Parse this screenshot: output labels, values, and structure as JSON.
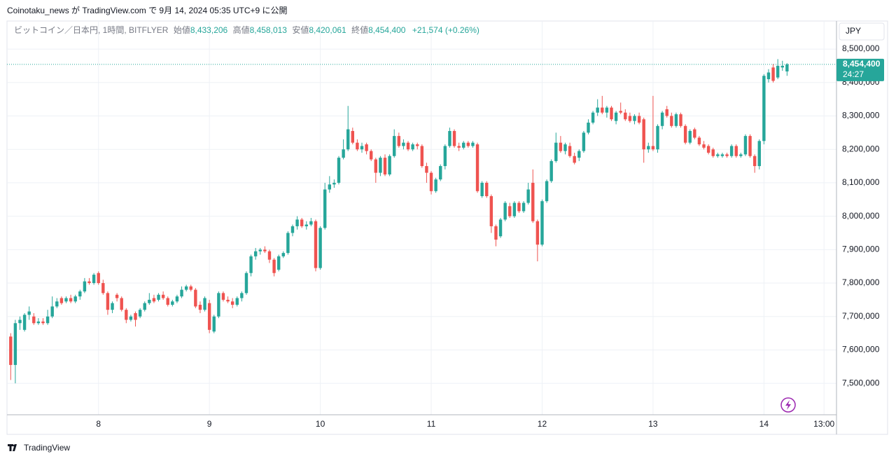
{
  "header": "Coinotaku_news が TradingView.com で 9月 14, 2024 05:35 UTC+9 に公開",
  "footer": "TradingView",
  "currency": "JPY",
  "legend": {
    "symbol": "ビットコイン／日本円, 1時間, BITFLYER",
    "items": [
      {
        "label": "始値",
        "value": "8,433,206"
      },
      {
        "label": "高値",
        "value": "8,458,013"
      },
      {
        "label": "安値",
        "value": "8,420,061"
      },
      {
        "label": "終値",
        "value": "8,454,400"
      }
    ],
    "change": "+21,574 (+0.26%)"
  },
  "chart_data": {
    "type": "candlestick",
    "up_color": "#26a69a",
    "down_color": "#ef5350",
    "last_price": {
      "value": 8454400,
      "label": "8,454,400"
    },
    "countdown": "24:27",
    "xlim": [
      4.2,
      183.7
    ],
    "xticks": [
      {
        "value": 24,
        "label": "8"
      },
      {
        "value": 48,
        "label": "9"
      },
      {
        "value": 72,
        "label": "10"
      },
      {
        "value": 96,
        "label": "11"
      },
      {
        "value": 120,
        "label": "12"
      },
      {
        "value": 144,
        "label": "13"
      },
      {
        "value": 168,
        "label": "14"
      },
      {
        "value": 181,
        "label": "13:00"
      }
    ],
    "ylim": [
      7406000,
      8584000
    ],
    "yticks": [
      {
        "value": 7500000,
        "label": "7,500,000"
      },
      {
        "value": 7600000,
        "label": "7,600,000"
      },
      {
        "value": 7700000,
        "label": "7,700,000"
      },
      {
        "value": 7800000,
        "label": "7,800,000"
      },
      {
        "value": 7900000,
        "label": "7,900,000"
      },
      {
        "value": 8000000,
        "label": "8,000,000"
      },
      {
        "value": 8100000,
        "label": "8,100,000"
      },
      {
        "value": 8200000,
        "label": "8,200,000"
      },
      {
        "value": 8300000,
        "label": "8,300,000"
      },
      {
        "value": 8400000,
        "label": "8,400,000"
      },
      {
        "value": 8500000,
        "label": "8,500,000"
      }
    ],
    "grid": true,
    "x": [
      5,
      6,
      7,
      8,
      9,
      10,
      11,
      12,
      13,
      14,
      15,
      16,
      17,
      18,
      19,
      20,
      21,
      22,
      23,
      24,
      25,
      26,
      27,
      28,
      29,
      30,
      31,
      32,
      33,
      34,
      35,
      36,
      37,
      38,
      39,
      40,
      41,
      42,
      43,
      44,
      45,
      46,
      47,
      48,
      49,
      50,
      51,
      52,
      53,
      54,
      55,
      56,
      57,
      58,
      59,
      60,
      61,
      62,
      63,
      64,
      65,
      66,
      67,
      68,
      69,
      70,
      71,
      72,
      73,
      74,
      75,
      76,
      77,
      78,
      79,
      80,
      81,
      82,
      83,
      84,
      85,
      86,
      87,
      88,
      89,
      90,
      91,
      92,
      93,
      94,
      95,
      96,
      97,
      98,
      99,
      100,
      101,
      102,
      103,
      104,
      105,
      106,
      107,
      108,
      109,
      110,
      111,
      112,
      113,
      114,
      115,
      116,
      117,
      118,
      119,
      120,
      121,
      122,
      123,
      124,
      125,
      126,
      127,
      128,
      129,
      130,
      131,
      132,
      133,
      134,
      135,
      136,
      137,
      138,
      139,
      140,
      141,
      142,
      143,
      144,
      145,
      146,
      147,
      148,
      149,
      150,
      151,
      152,
      153,
      154,
      155,
      156,
      157,
      158,
      159,
      160,
      161,
      162,
      163,
      164,
      165,
      166,
      167,
      168,
      169,
      170,
      171,
      172,
      173
    ],
    "candles": [
      [
        7640000,
        7650000,
        7510000,
        7555000
      ],
      [
        7555000,
        7690000,
        7500000,
        7680000
      ],
      [
        7680000,
        7700000,
        7660000,
        7690000
      ],
      [
        7660000,
        7710000,
        7655000,
        7705000
      ],
      [
        7705000,
        7730000,
        7690000,
        7715000
      ],
      [
        7700000,
        7710000,
        7675000,
        7680000
      ],
      [
        7680000,
        7695000,
        7675000,
        7685000
      ],
      [
        7685000,
        7695000,
        7675000,
        7680000
      ],
      [
        7680000,
        7720000,
        7675000,
        7700000
      ],
      [
        7700000,
        7760000,
        7695000,
        7730000
      ],
      [
        7730000,
        7755000,
        7725000,
        7745000
      ],
      [
        7755000,
        7760000,
        7735000,
        7740000
      ],
      [
        7745000,
        7760000,
        7740000,
        7755000
      ],
      [
        7755000,
        7765000,
        7740000,
        7745000
      ],
      [
        7745000,
        7765000,
        7740000,
        7760000
      ],
      [
        7760000,
        7780000,
        7750000,
        7775000
      ],
      [
        7775000,
        7815000,
        7770000,
        7805000
      ],
      [
        7805000,
        7815000,
        7795000,
        7800000
      ],
      [
        7800000,
        7830000,
        7795000,
        7825000
      ],
      [
        7830000,
        7835000,
        7795000,
        7800000
      ],
      [
        7800000,
        7810000,
        7765000,
        7770000
      ],
      [
        7770000,
        7775000,
        7705000,
        7720000
      ],
      [
        7720000,
        7745000,
        7710000,
        7740000
      ],
      [
        7765000,
        7770000,
        7745000,
        7755000
      ],
      [
        7755000,
        7760000,
        7715000,
        7720000
      ],
      [
        7720000,
        7725000,
        7680000,
        7690000
      ],
      [
        7690000,
        7705000,
        7685000,
        7700000
      ],
      [
        7710000,
        7715000,
        7670000,
        7690000
      ],
      [
        7700000,
        7725000,
        7695000,
        7720000
      ],
      [
        7720000,
        7745000,
        7715000,
        7740000
      ],
      [
        7740000,
        7770000,
        7735000,
        7750000
      ],
      [
        7755000,
        7765000,
        7740000,
        7745000
      ],
      [
        7750000,
        7770000,
        7745000,
        7765000
      ],
      [
        7765000,
        7775000,
        7750000,
        7755000
      ],
      [
        7755000,
        7760000,
        7730000,
        7735000
      ],
      [
        7735000,
        7750000,
        7730000,
        7745000
      ],
      [
        7745000,
        7765000,
        7740000,
        7760000
      ],
      [
        7760000,
        7790000,
        7755000,
        7780000
      ],
      [
        7780000,
        7795000,
        7775000,
        7790000
      ],
      [
        7790000,
        7795000,
        7775000,
        7780000
      ],
      [
        7780000,
        7785000,
        7725000,
        7730000
      ],
      [
        7735000,
        7745000,
        7710000,
        7720000
      ],
      [
        7720000,
        7760000,
        7715000,
        7755000
      ],
      [
        7740000,
        7750000,
        7650000,
        7660000
      ],
      [
        7655000,
        7705000,
        7650000,
        7700000
      ],
      [
        7700000,
        7775000,
        7695000,
        7770000
      ],
      [
        7770000,
        7775000,
        7745000,
        7750000
      ],
      [
        7750000,
        7760000,
        7740000,
        7745000
      ],
      [
        7745000,
        7755000,
        7725000,
        7735000
      ],
      [
        7735000,
        7760000,
        7730000,
        7755000
      ],
      [
        7755000,
        7775000,
        7745000,
        7770000
      ],
      [
        7770000,
        7835000,
        7765000,
        7830000
      ],
      [
        7830000,
        7885000,
        7820000,
        7880000
      ],
      [
        7880000,
        7905000,
        7870000,
        7895000
      ],
      [
        7895000,
        7905000,
        7885000,
        7900000
      ],
      [
        7900000,
        7910000,
        7890000,
        7895000
      ],
      [
        7895000,
        7900000,
        7860000,
        7870000
      ],
      [
        7870000,
        7875000,
        7820000,
        7830000
      ],
      [
        7840000,
        7885000,
        7835000,
        7880000
      ],
      [
        7880000,
        7895000,
        7875000,
        7890000
      ],
      [
        7890000,
        7955000,
        7885000,
        7950000
      ],
      [
        7950000,
        7975000,
        7940000,
        7970000
      ],
      [
        7970000,
        8000000,
        7960000,
        7990000
      ],
      [
        7990000,
        7995000,
        7965000,
        7970000
      ],
      [
        7970000,
        7985000,
        7960000,
        7975000
      ],
      [
        7975000,
        7995000,
        7970000,
        7985000
      ],
      [
        7985000,
        7990000,
        7835000,
        7845000
      ],
      [
        7845000,
        7970000,
        7840000,
        7965000
      ],
      [
        7965000,
        8100000,
        7960000,
        8080000
      ],
      [
        8080000,
        8120000,
        8070000,
        8095000
      ],
      [
        8095000,
        8110000,
        8085000,
        8100000
      ],
      [
        8100000,
        8180000,
        8095000,
        8175000
      ],
      [
        8175000,
        8230000,
        8170000,
        8200000
      ],
      [
        8200000,
        8330000,
        8195000,
        8260000
      ],
      [
        8255000,
        8265000,
        8215000,
        8220000
      ],
      [
        8220000,
        8230000,
        8195000,
        8200000
      ],
      [
        8200000,
        8220000,
        8190000,
        8210000
      ],
      [
        8215000,
        8220000,
        8185000,
        8195000
      ],
      [
        8195000,
        8200000,
        8165000,
        8170000
      ],
      [
        8170000,
        8175000,
        8100000,
        8130000
      ],
      [
        8130000,
        8180000,
        8120000,
        8175000
      ],
      [
        8175000,
        8185000,
        8120000,
        8125000
      ],
      [
        8125000,
        8185000,
        8120000,
        8180000
      ],
      [
        8180000,
        8260000,
        8175000,
        8240000
      ],
      [
        8240000,
        8250000,
        8205000,
        8210000
      ],
      [
        8210000,
        8230000,
        8200000,
        8220000
      ],
      [
        8220000,
        8225000,
        8195000,
        8200000
      ],
      [
        8200000,
        8220000,
        8195000,
        8215000
      ],
      [
        8215000,
        8220000,
        8200000,
        8210000
      ],
      [
        8210000,
        8215000,
        8145000,
        8150000
      ],
      [
        8150000,
        8160000,
        8100000,
        8130000
      ],
      [
        8130000,
        8135000,
        8065000,
        8075000
      ],
      [
        8075000,
        8115000,
        8070000,
        8110000
      ],
      [
        8110000,
        8155000,
        8105000,
        8150000
      ],
      [
        8150000,
        8215000,
        8140000,
        8210000
      ],
      [
        8210000,
        8265000,
        8205000,
        8255000
      ],
      [
        8255000,
        8260000,
        8205000,
        8210000
      ],
      [
        8210000,
        8220000,
        8195000,
        8205000
      ],
      [
        8205000,
        8225000,
        8200000,
        8220000
      ],
      [
        8220000,
        8225000,
        8205000,
        8210000
      ],
      [
        8210000,
        8225000,
        8205000,
        8220000
      ],
      [
        8215000,
        8220000,
        8070000,
        8075000
      ],
      [
        8060000,
        8105000,
        8055000,
        8100000
      ],
      [
        8100000,
        8105000,
        8055000,
        8060000
      ],
      [
        8060000,
        8065000,
        7950000,
        7970000
      ],
      [
        7970000,
        7975000,
        7910000,
        7930000
      ],
      [
        7940000,
        7995000,
        7935000,
        7990000
      ],
      [
        7990000,
        8045000,
        7985000,
        8040000
      ],
      [
        8030000,
        8040000,
        7995000,
        8000000
      ],
      [
        8000000,
        8045000,
        7995000,
        8040000
      ],
      [
        8040000,
        8045000,
        8010000,
        8015000
      ],
      [
        8015000,
        8045000,
        8010000,
        8040000
      ],
      [
        8040000,
        8100000,
        8035000,
        8080000
      ],
      [
        8100000,
        8140000,
        7980000,
        7985000
      ],
      [
        7985000,
        7990000,
        7865000,
        7915000
      ],
      [
        7915000,
        8050000,
        7910000,
        8045000
      ],
      [
        8045000,
        8110000,
        8040000,
        8105000
      ],
      [
        8105000,
        8170000,
        8100000,
        8165000
      ],
      [
        8165000,
        8250000,
        8160000,
        8220000
      ],
      [
        8220000,
        8240000,
        8190000,
        8195000
      ],
      [
        8195000,
        8220000,
        8185000,
        8215000
      ],
      [
        8210000,
        8220000,
        8175000,
        8180000
      ],
      [
        8180000,
        8190000,
        8155000,
        8160000
      ],
      [
        8175000,
        8200000,
        8165000,
        8195000
      ],
      [
        8195000,
        8255000,
        8190000,
        8250000
      ],
      [
        8250000,
        8290000,
        8245000,
        8280000
      ],
      [
        8280000,
        8315000,
        8275000,
        8310000
      ],
      [
        8310000,
        8350000,
        8300000,
        8325000
      ],
      [
        8325000,
        8360000,
        8305000,
        8310000
      ],
      [
        8310000,
        8330000,
        8295000,
        8325000
      ],
      [
        8325000,
        8330000,
        8285000,
        8290000
      ],
      [
        8285000,
        8315000,
        8275000,
        8310000
      ],
      [
        8315000,
        8340000,
        8305000,
        8310000
      ],
      [
        8310000,
        8320000,
        8285000,
        8290000
      ],
      [
        8300000,
        8310000,
        8280000,
        8285000
      ],
      [
        8285000,
        8305000,
        8275000,
        8300000
      ],
      [
        8300000,
        8310000,
        8275000,
        8280000
      ],
      [
        8290000,
        8295000,
        8160000,
        8200000
      ],
      [
        8200000,
        8220000,
        8190000,
        8210000
      ],
      [
        8210000,
        8360000,
        8195000,
        8200000
      ],
      [
        8200000,
        8275000,
        8190000,
        8270000
      ],
      [
        8270000,
        8315000,
        8260000,
        8310000
      ],
      [
        8320000,
        8330000,
        8295000,
        8300000
      ],
      [
        8300000,
        8310000,
        8265000,
        8270000
      ],
      [
        8270000,
        8310000,
        8265000,
        8305000
      ],
      [
        8305000,
        8310000,
        8265000,
        8270000
      ],
      [
        8270000,
        8275000,
        8215000,
        8220000
      ],
      [
        8220000,
        8260000,
        8215000,
        8255000
      ],
      [
        8260000,
        8265000,
        8230000,
        8235000
      ],
      [
        8235000,
        8240000,
        8210000,
        8215000
      ],
      [
        8215000,
        8225000,
        8200000,
        8205000
      ],
      [
        8210000,
        8215000,
        8185000,
        8190000
      ],
      [
        8200000,
        8205000,
        8175000,
        8180000
      ],
      [
        8180000,
        8190000,
        8175000,
        8185000
      ],
      [
        8180000,
        8190000,
        8175000,
        8185000
      ],
      [
        8185000,
        8190000,
        8175000,
        8180000
      ],
      [
        8180000,
        8215000,
        8175000,
        8210000
      ],
      [
        8210000,
        8215000,
        8175000,
        8180000
      ],
      [
        8180000,
        8190000,
        8175000,
        8185000
      ],
      [
        8185000,
        8245000,
        8180000,
        8240000
      ],
      [
        8240000,
        8245000,
        8175000,
        8180000
      ],
      [
        8180000,
        8185000,
        8130000,
        8150000
      ],
      [
        8150000,
        8230000,
        8140000,
        8225000
      ],
      [
        8225000,
        8425000,
        8215000,
        8420000
      ],
      [
        8410000,
        8440000,
        8400000,
        8430000
      ],
      [
        8445000,
        8455000,
        8400000,
        8405000
      ],
      [
        8415000,
        8470000,
        8410000,
        8450000
      ],
      [
        8445000,
        8465000,
        8435000,
        8450000
      ],
      [
        8433206,
        8458013,
        8420061,
        8454400
      ]
    ]
  }
}
